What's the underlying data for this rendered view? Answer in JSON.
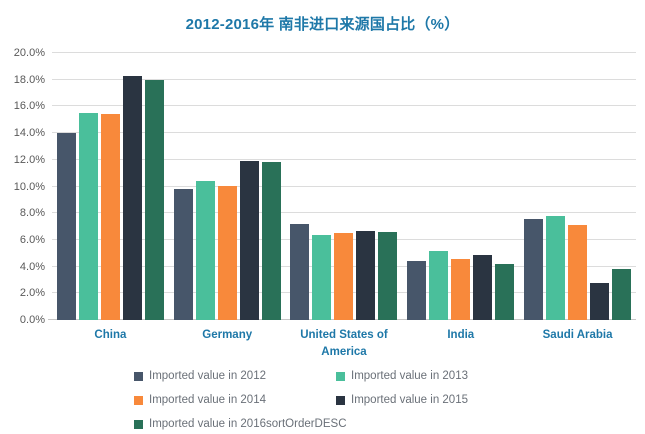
{
  "colors": {
    "accent": "#1E78A8",
    "axis_text": "#595959",
    "legend_text": "#6A7078",
    "gridline": "#DCDCDC",
    "axis_line": "#C6C6C6",
    "background": "#FFFFFF"
  },
  "chart_data": {
    "type": "bar",
    "title": "2012-2016年 南非进口来源国占比（%）",
    "xlabel": "",
    "ylabel": "",
    "categories": [
      "China",
      "Germany",
      "United States of America",
      "India",
      "Saudi Arabia"
    ],
    "series": [
      {
        "name": "Imported value in 2012",
        "color": "#47566A",
        "values": [
          14.0,
          9.8,
          7.2,
          4.4,
          7.6
        ]
      },
      {
        "name": "Imported value in 2013",
        "color": "#4ABF9B",
        "values": [
          15.5,
          10.4,
          6.4,
          5.2,
          7.8
        ]
      },
      {
        "name": "Imported value in 2014",
        "color": "#F8893B",
        "values": [
          15.4,
          10.0,
          6.5,
          4.6,
          7.1
        ]
      },
      {
        "name": "Imported value in 2015",
        "color": "#2A3441",
        "values": [
          18.3,
          11.9,
          6.7,
          4.9,
          2.8
        ]
      },
      {
        "name": "Imported value in 2016sortOrderDESC",
        "color": "#297158",
        "values": [
          18.0,
          11.8,
          6.6,
          4.2,
          3.8
        ]
      }
    ],
    "ylim": [
      0,
      20
    ],
    "ytick_step": 2,
    "ytick_values": [
      0,
      2,
      4,
      6,
      8,
      10,
      12,
      14,
      16,
      18,
      20
    ],
    "ytick_labels": [
      "0.0%",
      "2.0%",
      "4.0%",
      "6.0%",
      "8.0%",
      "10.0%",
      "12.0%",
      "14.0%",
      "16.0%",
      "18.0%",
      "20.0%"
    ],
    "grid": true,
    "legend_position": "bottom",
    "legend_columns": 2
  }
}
